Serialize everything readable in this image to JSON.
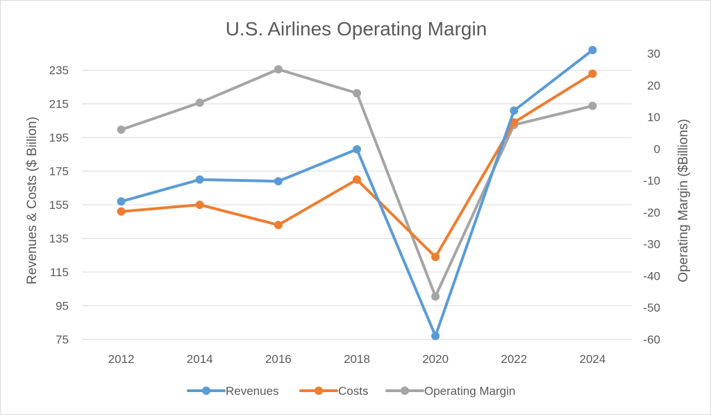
{
  "chart_data": {
    "type": "line",
    "title": "U.S. Airlines Operating Margin",
    "x": [
      "2012",
      "2014",
      "2016",
      "2018",
      "2020",
      "2022",
      "2024"
    ],
    "y_left": {
      "label": "Revenues & Costs ($ Biilion)",
      "range": [
        75,
        245
      ],
      "ticks": [
        75,
        95,
        115,
        135,
        155,
        175,
        195,
        215,
        235
      ]
    },
    "y_right": {
      "label": "Operating Margin ($Billions)",
      "range": [
        -60,
        30
      ],
      "ticks": [
        30,
        20,
        10,
        0,
        -10,
        -20,
        -30,
        -40,
        -50,
        -60
      ]
    },
    "series": [
      {
        "name": "Revenues",
        "axis": "left",
        "color": "#5b9bd5",
        "values": [
          157,
          170,
          169,
          188,
          77,
          211,
          247
        ]
      },
      {
        "name": "Costs",
        "axis": "left",
        "color": "#ed7d31",
        "values": [
          151,
          155,
          143,
          170,
          124,
          204,
          233
        ]
      },
      {
        "name": "Operating Margin",
        "axis": "right",
        "color": "#a5a5a5",
        "values": [
          6,
          14.5,
          25,
          17.5,
          -46.5,
          7.5,
          13.5
        ]
      }
    ],
    "grid": true,
    "legend": "bottom"
  }
}
